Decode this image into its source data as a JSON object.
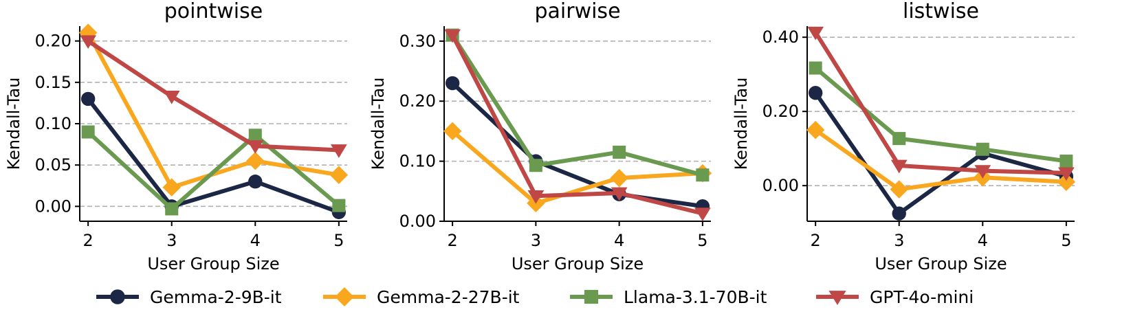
{
  "chart_data": [
    {
      "type": "line",
      "title": "pointwise",
      "xlabel": "User Group Size",
      "ylabel": "Kendall-Tau",
      "x": [
        2,
        3,
        4,
        5
      ],
      "xlim": [
        1.9,
        5.1
      ],
      "ylim": [
        -0.018,
        0.218
      ],
      "yticks": [
        0.0,
        0.05,
        0.1,
        0.15,
        0.2
      ],
      "ytick_labels": [
        "0.00",
        "0.05",
        "0.10",
        "0.15",
        "0.20"
      ],
      "grid": "y-dashed",
      "series": [
        {
          "name": "Gemma-2-9B-it",
          "values": [
            0.13,
            0.0,
            0.03,
            -0.007
          ]
        },
        {
          "name": "Gemma-2-27B-it",
          "values": [
            0.21,
            0.023,
            0.055,
            0.038
          ]
        },
        {
          "name": "Llama-3.1-70B-it",
          "values": [
            0.09,
            -0.003,
            0.086,
            0.001
          ]
        },
        {
          "name": "GPT-4o-mini",
          "values": [
            0.2,
            0.133,
            0.073,
            0.068
          ]
        }
      ]
    },
    {
      "type": "line",
      "title": "pairwise",
      "xlabel": "User Group Size",
      "ylabel": "Kendall-Tau",
      "x": [
        2,
        3,
        4,
        5
      ],
      "xlim": [
        1.9,
        5.1
      ],
      "ylim": [
        0.0,
        0.325
      ],
      "yticks": [
        0.0,
        0.1,
        0.2,
        0.3
      ],
      "ytick_labels": [
        "0.00",
        "0.10",
        "0.20",
        "0.30"
      ],
      "grid": "y-dashed",
      "series": [
        {
          "name": "Gemma-2-9B-it",
          "values": [
            0.23,
            0.1,
            0.045,
            0.025
          ]
        },
        {
          "name": "Gemma-2-27B-it",
          "values": [
            0.15,
            0.03,
            0.072,
            0.08
          ]
        },
        {
          "name": "Llama-3.1-70B-it",
          "values": [
            0.31,
            0.093,
            0.115,
            0.077
          ]
        },
        {
          "name": "GPT-4o-mini",
          "values": [
            0.31,
            0.042,
            0.047,
            0.013
          ]
        }
      ]
    },
    {
      "type": "line",
      "title": "listwise",
      "xlabel": "User Group Size",
      "ylabel": "Kendall-Tau",
      "x": [
        2,
        3,
        4,
        5
      ],
      "xlim": [
        1.9,
        5.1
      ],
      "ylim": [
        -0.096,
        0.43
      ],
      "yticks": [
        0.0,
        0.2,
        0.4
      ],
      "ytick_labels": [
        "0.00",
        "0.20",
        "0.40"
      ],
      "grid": "y-dashed",
      "series": [
        {
          "name": "Gemma-2-9B-it",
          "values": [
            0.25,
            -0.075,
            0.087,
            0.025
          ]
        },
        {
          "name": "Gemma-2-27B-it",
          "values": [
            0.15,
            -0.01,
            0.022,
            0.01
          ]
        },
        {
          "name": "Llama-3.1-70B-it",
          "values": [
            0.317,
            0.127,
            0.098,
            0.066
          ]
        },
        {
          "name": "GPT-4o-mini",
          "values": [
            0.413,
            0.054,
            0.04,
            0.034
          ]
        }
      ]
    }
  ],
  "legend": {
    "placement": "bottom",
    "items": [
      {
        "name": "Gemma-2-9B-it",
        "color": "#1b2744",
        "marker": "circle"
      },
      {
        "name": "Gemma-2-27B-it",
        "color": "#f9a71e",
        "marker": "diamond"
      },
      {
        "name": "Llama-3.1-70B-it",
        "color": "#6a9a4f",
        "marker": "square"
      },
      {
        "name": "GPT-4o-mini",
        "color": "#bf4746",
        "marker": "triangle-down"
      }
    ]
  }
}
